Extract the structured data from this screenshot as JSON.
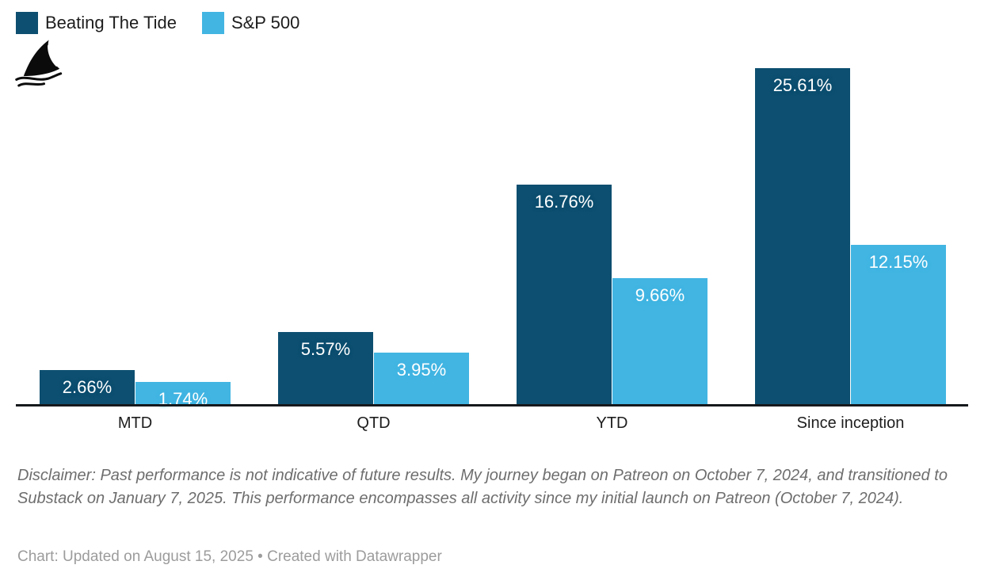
{
  "legend": {
    "items": [
      {
        "label": "Beating The Tide",
        "color": "#0d4f70"
      },
      {
        "label": "S&P 500",
        "color": "#42b5e2"
      }
    ]
  },
  "logo": {
    "name": "shark-fin"
  },
  "chart_data": {
    "type": "bar",
    "categories": [
      "MTD",
      "QTD",
      "YTD",
      "Since inception"
    ],
    "series": [
      {
        "name": "Beating The Tide",
        "color": "#0d4f70",
        "values": [
          2.66,
          5.57,
          16.76,
          25.61
        ],
        "labels": [
          "2.66%",
          "5.57%",
          "16.76%",
          "25.61%"
        ]
      },
      {
        "name": "S&P 500",
        "color": "#42b5e2",
        "values": [
          1.74,
          3.95,
          9.66,
          12.15
        ],
        "labels": [
          "1.74%",
          "3.95%",
          "9.66%",
          "12.15%"
        ]
      }
    ],
    "ylim": [
      0,
      26
    ],
    "grid": false,
    "legend_position": "top-left",
    "value_label_format": "percent",
    "value_label_color": "#ffffff"
  },
  "notes": {
    "disclaimer": "Disclaimer: Past performance is not indicative of future results. My journey began on Patreon on October 7, 2024, and transitioned to Substack on January 7, 2025. This performance encompasses all activity since my initial launch on Patreon (October 7, 2024)."
  },
  "footer": {
    "text": "Chart: Updated on August 15, 2025 • Created with Datawrapper"
  }
}
